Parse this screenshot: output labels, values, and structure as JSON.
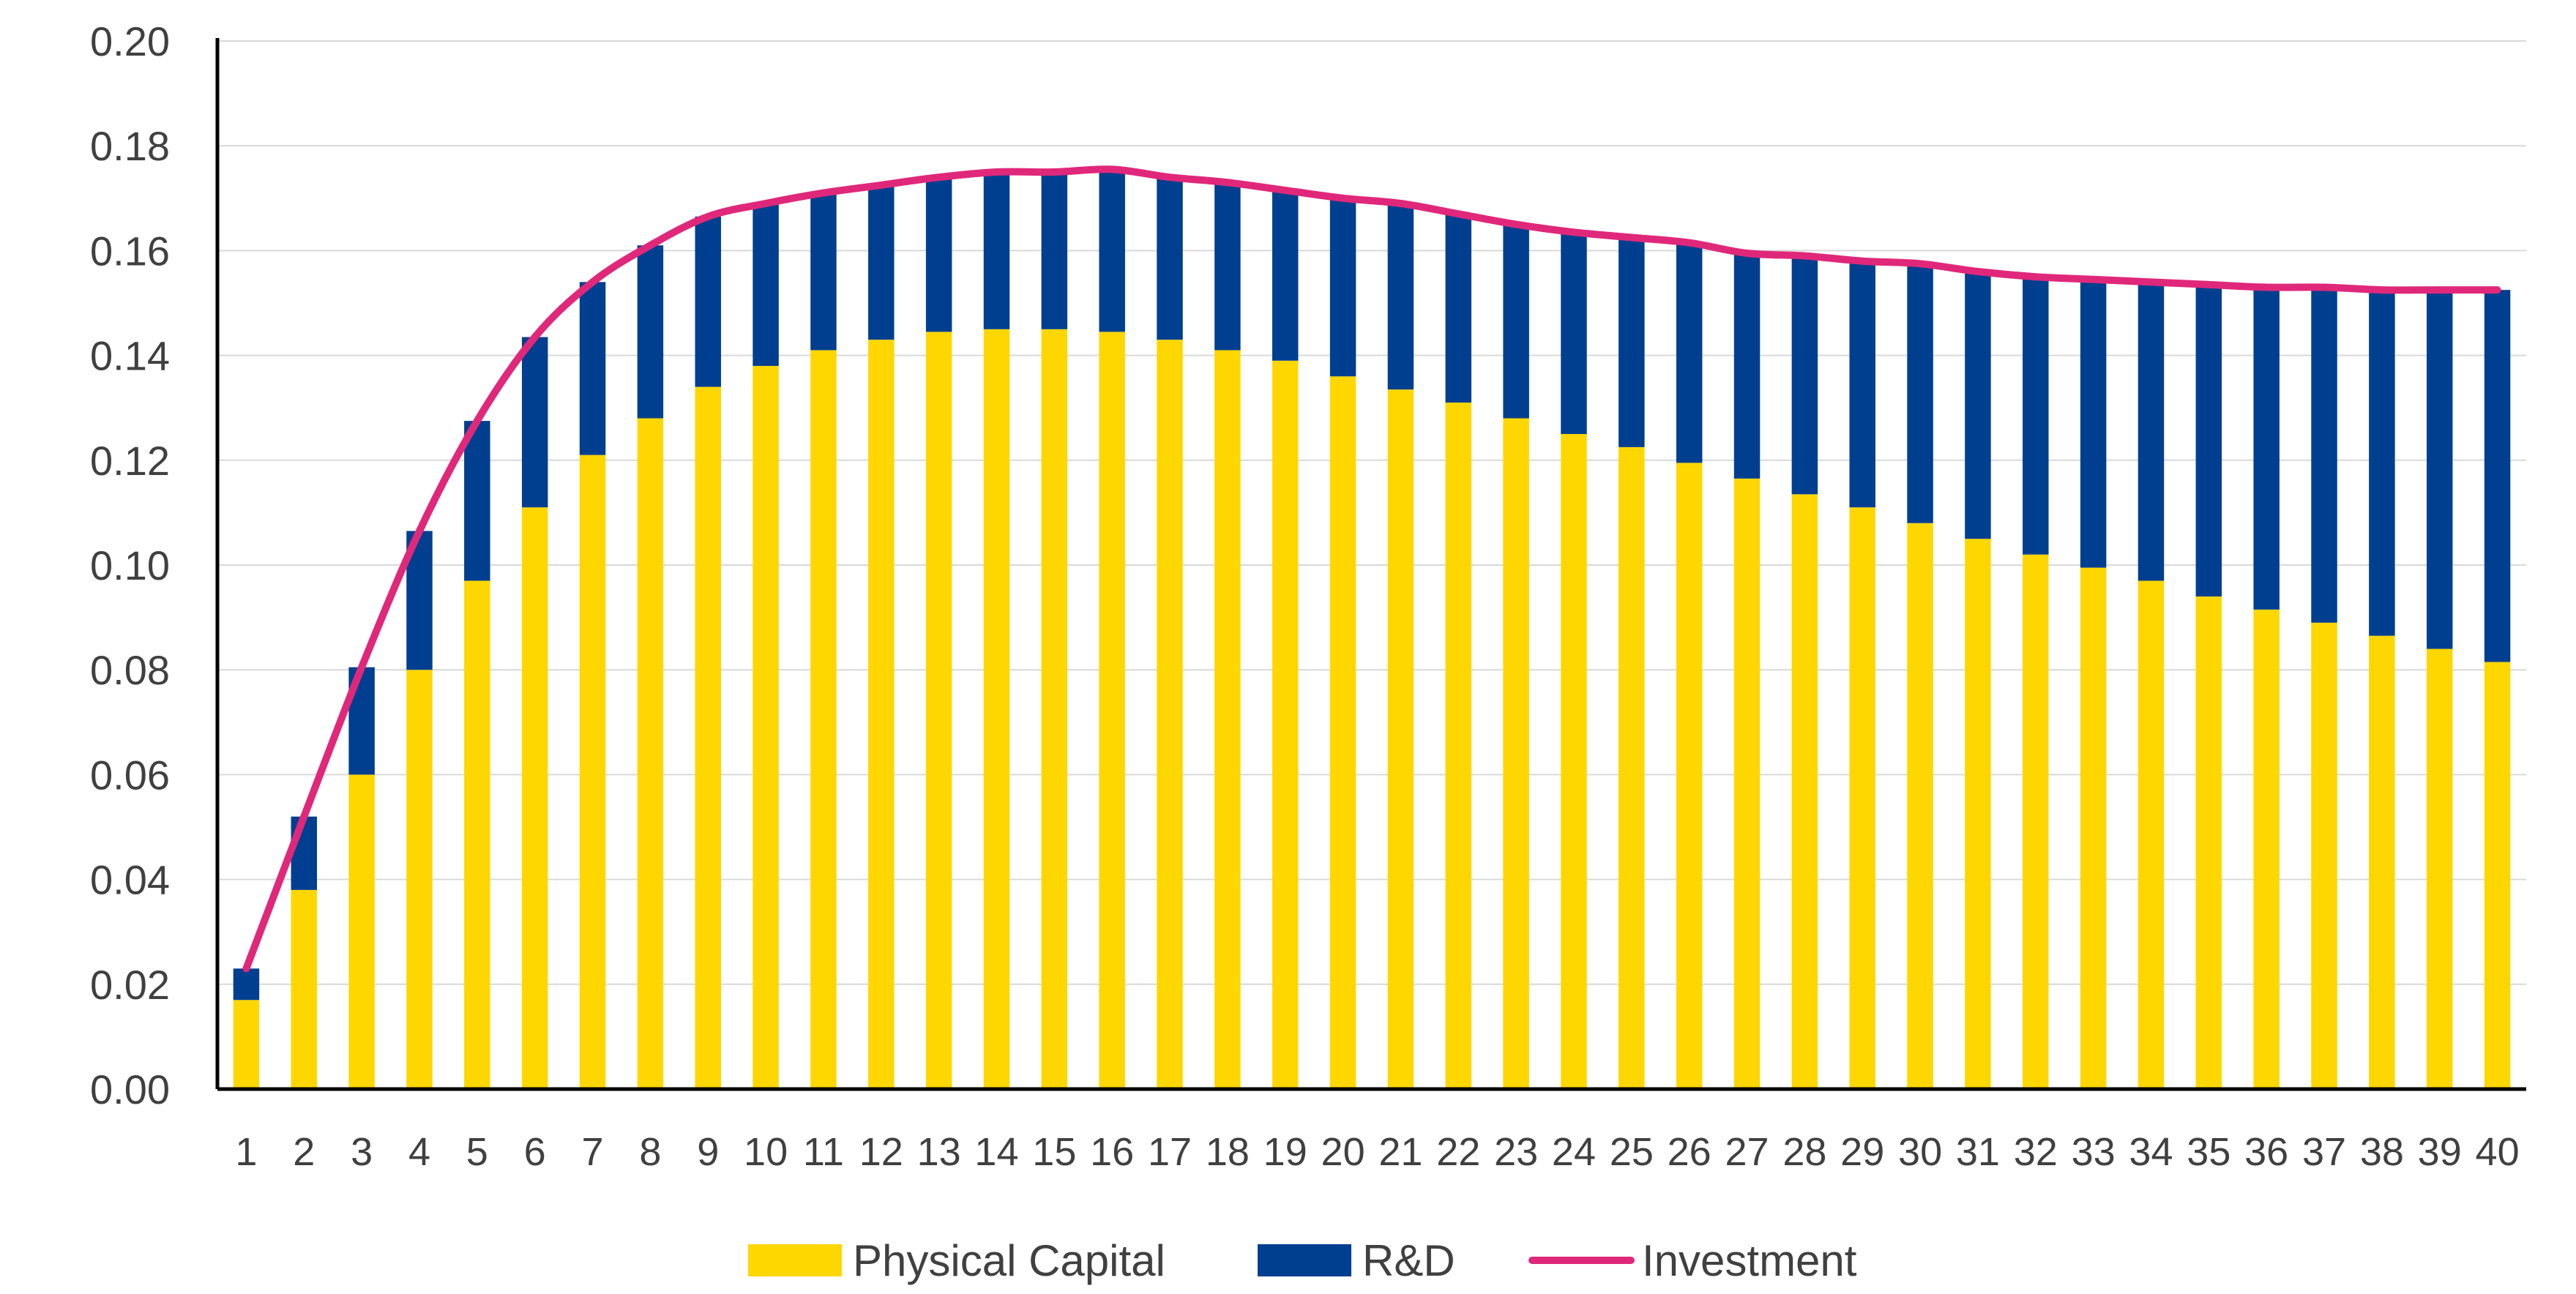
{
  "chart_data": {
    "type": "bar",
    "stacked": true,
    "categories": [
      "1",
      "2",
      "3",
      "4",
      "5",
      "6",
      "7",
      "8",
      "9",
      "10",
      "11",
      "12",
      "13",
      "14",
      "15",
      "16",
      "17",
      "18",
      "19",
      "20",
      "21",
      "22",
      "23",
      "24",
      "25",
      "26",
      "27",
      "28",
      "29",
      "30",
      "31",
      "32",
      "33",
      "34",
      "35",
      "36",
      "37",
      "38",
      "39",
      "40"
    ],
    "ylim": [
      0,
      0.2
    ],
    "yticks": [
      "0.00",
      "0.02",
      "0.04",
      "0.06",
      "0.08",
      "0.10",
      "0.12",
      "0.14",
      "0.16",
      "0.18",
      "0.20"
    ],
    "grid": true,
    "legend_position": "bottom",
    "series": [
      {
        "name": "Physical Capital",
        "kind": "bar",
        "color": "#FFD700",
        "values": [
          0.017,
          0.038,
          0.06,
          0.08,
          0.097,
          0.111,
          0.121,
          0.128,
          0.134,
          0.138,
          0.141,
          0.143,
          0.1445,
          0.145,
          0.145,
          0.1445,
          0.143,
          0.141,
          0.139,
          0.136,
          0.1335,
          0.131,
          0.128,
          0.125,
          0.1225,
          0.1195,
          0.1165,
          0.1135,
          0.111,
          0.108,
          0.105,
          0.102,
          0.0995,
          0.097,
          0.094,
          0.0915,
          0.089,
          0.0865,
          0.084,
          0.0815
        ]
      },
      {
        "name": "R&D",
        "kind": "bar",
        "color": "#003F8F",
        "values": [
          0.006,
          0.014,
          0.0205,
          0.0265,
          0.0305,
          0.0325,
          0.033,
          0.033,
          0.0325,
          0.031,
          0.03,
          0.0295,
          0.0295,
          0.03,
          0.03,
          0.031,
          0.031,
          0.032,
          0.0325,
          0.034,
          0.0355,
          0.036,
          0.037,
          0.0385,
          0.04,
          0.042,
          0.043,
          0.0455,
          0.047,
          0.0495,
          0.051,
          0.053,
          0.055,
          0.057,
          0.0595,
          0.0615,
          0.064,
          0.066,
          0.0685,
          0.071
        ]
      },
      {
        "name": "Investment",
        "kind": "line",
        "color": "#E0287A",
        "values": [
          0.023,
          0.052,
          0.0805,
          0.1065,
          0.1275,
          0.1435,
          0.154,
          0.161,
          0.1665,
          0.169,
          0.171,
          0.1725,
          0.174,
          0.175,
          0.175,
          0.1755,
          0.174,
          0.173,
          0.1715,
          0.17,
          0.169,
          0.167,
          0.165,
          0.1635,
          0.1625,
          0.1615,
          0.1595,
          0.159,
          0.158,
          0.1575,
          0.156,
          0.155,
          0.1545,
          0.154,
          0.1535,
          0.153,
          0.153,
          0.1525,
          0.1525,
          0.1525
        ]
      }
    ]
  }
}
